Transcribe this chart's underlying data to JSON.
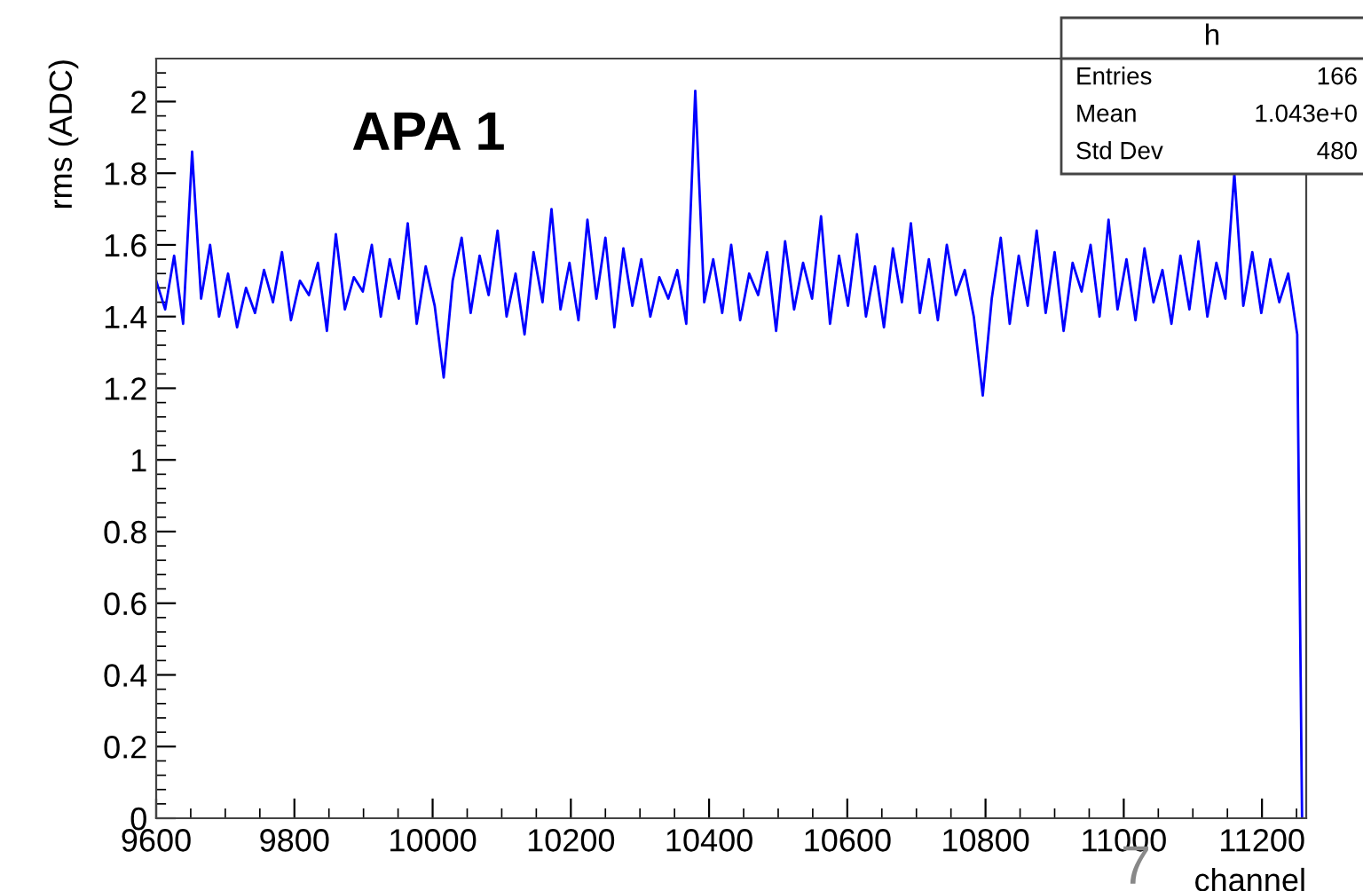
{
  "chart_data": {
    "type": "line",
    "xlabel": "channel",
    "ylabel": "rms (ADC)",
    "annotations": [
      "APA 1",
      "h",
      "Entries",
      "166",
      "Mean",
      "1.043e+0",
      "Std Dev",
      "480",
      "7"
    ],
    "xlim": [
      9600,
      11264
    ],
    "ylim": [
      0,
      2.12
    ],
    "xticks": [
      9600,
      9800,
      10000,
      10200,
      10400,
      10600,
      10800,
      11000,
      11200
    ],
    "yticks": [
      0,
      0.2,
      0.4,
      0.6,
      0.8,
      1,
      1.2,
      1.4,
      1.6,
      1.8,
      2
    ],
    "grid": false,
    "series": [
      {
        "color": "#0000ff",
        "x": [
          9600,
          9613,
          9626,
          9639,
          9652,
          9665,
          9678,
          9691,
          9704,
          9717,
          9730,
          9743,
          9756,
          9769,
          9782,
          9795,
          9808,
          9821,
          9834,
          9847,
          9860,
          9873,
          9886,
          9899,
          9912,
          9925,
          9938,
          9951,
          9964,
          9977,
          9990,
          10003,
          10016,
          10029,
          10042,
          10055,
          10068,
          10081,
          10094,
          10107,
          10120,
          10133,
          10146,
          10159,
          10172,
          10185,
          10198,
          10211,
          10224,
          10237,
          10250,
          10263,
          10276,
          10289,
          10302,
          10315,
          10328,
          10341,
          10354,
          10367,
          10380,
          10393,
          10406,
          10419,
          10432,
          10445,
          10458,
          10471,
          10484,
          10497,
          10510,
          10523,
          10536,
          10549,
          10562,
          10575,
          10588,
          10601,
          10614,
          10627,
          10640,
          10653,
          10666,
          10679,
          10692,
          10705,
          10718,
          10731,
          10744,
          10757,
          10770,
          10783,
          10796,
          10809,
          10822,
          10835,
          10848,
          10861,
          10874,
          10887,
          10900,
          10913,
          10926,
          10939,
          10952,
          10965,
          10978,
          10991,
          11004,
          11017,
          11030,
          11043,
          11056,
          11069,
          11082,
          11095,
          11108,
          11121,
          11134,
          11147,
          11160,
          11173,
          11186,
          11199,
          11212,
          11225,
          11238,
          11251,
          11258
        ],
        "values": [
          1.5,
          1.42,
          1.57,
          1.38,
          1.86,
          1.45,
          1.6,
          1.4,
          1.52,
          1.37,
          1.48,
          1.41,
          1.53,
          1.44,
          1.58,
          1.39,
          1.5,
          1.46,
          1.55,
          1.36,
          1.63,
          1.42,
          1.51,
          1.47,
          1.6,
          1.4,
          1.56,
          1.45,
          1.66,
          1.38,
          1.54,
          1.43,
          1.23,
          1.5,
          1.62,
          1.41,
          1.57,
          1.46,
          1.64,
          1.4,
          1.52,
          1.35,
          1.58,
          1.44,
          1.7,
          1.42,
          1.55,
          1.39,
          1.67,
          1.45,
          1.62,
          1.37,
          1.59,
          1.43,
          1.56,
          1.4,
          1.51,
          1.45,
          1.53,
          1.38,
          2.03,
          1.44,
          1.56,
          1.41,
          1.6,
          1.39,
          1.52,
          1.46,
          1.58,
          1.36,
          1.61,
          1.42,
          1.55,
          1.45,
          1.68,
          1.38,
          1.57,
          1.43,
          1.63,
          1.4,
          1.54,
          1.37,
          1.59,
          1.44,
          1.66,
          1.41,
          1.56,
          1.39,
          1.6,
          1.46,
          1.53,
          1.4,
          1.18,
          1.45,
          1.62,
          1.38,
          1.57,
          1.43,
          1.64,
          1.41,
          1.58,
          1.36,
          1.55,
          1.47,
          1.6,
          1.4,
          1.67,
          1.42,
          1.56,
          1.39,
          1.59,
          1.44,
          1.53,
          1.38,
          1.57,
          1.42,
          1.61,
          1.4,
          1.55,
          1.45,
          1.8,
          1.43,
          1.58,
          1.41,
          1.56,
          1.44,
          1.52,
          1.35,
          0
        ]
      }
    ]
  }
}
